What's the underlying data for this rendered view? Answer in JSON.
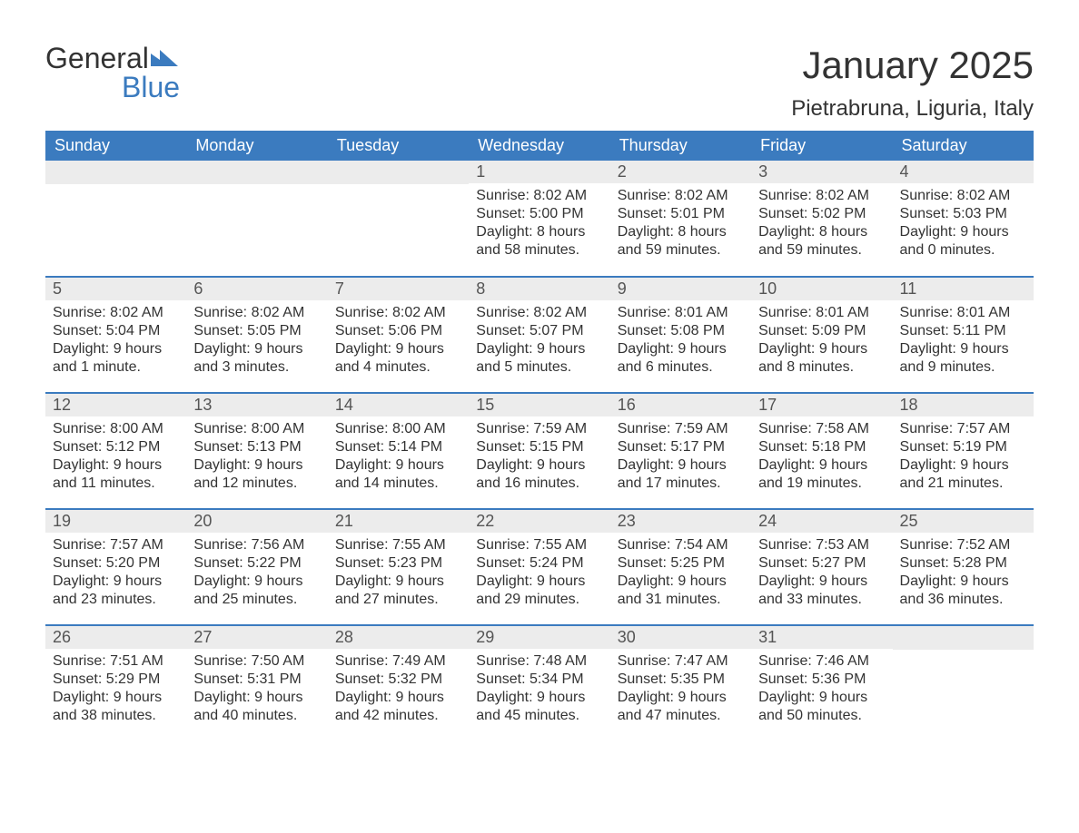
{
  "logo": {
    "word1": "General",
    "word2": "Blue",
    "mark_color": "#3b7bbf"
  },
  "title": "January 2025",
  "location": "Pietrabruna, Liguria, Italy",
  "colors": {
    "header_bg": "#3b7bbf",
    "header_text": "#ffffff",
    "daynum_bg": "#ececec",
    "daynum_text": "#555555",
    "body_text": "#333333",
    "row_border": "#3b7bbf",
    "page_bg": "#ffffff"
  },
  "typography": {
    "title_fontsize": 42,
    "location_fontsize": 24,
    "header_fontsize": 18,
    "daynum_fontsize": 18,
    "body_fontsize": 16,
    "font_family": "Arial"
  },
  "columns": [
    "Sunday",
    "Monday",
    "Tuesday",
    "Wednesday",
    "Thursday",
    "Friday",
    "Saturday"
  ],
  "weeks": [
    [
      null,
      null,
      null,
      {
        "n": "1",
        "sunrise": "8:02 AM",
        "sunset": "5:00 PM",
        "daylight": "8 hours and 58 minutes."
      },
      {
        "n": "2",
        "sunrise": "8:02 AM",
        "sunset": "5:01 PM",
        "daylight": "8 hours and 59 minutes."
      },
      {
        "n": "3",
        "sunrise": "8:02 AM",
        "sunset": "5:02 PM",
        "daylight": "8 hours and 59 minutes."
      },
      {
        "n": "4",
        "sunrise": "8:02 AM",
        "sunset": "5:03 PM",
        "daylight": "9 hours and 0 minutes."
      }
    ],
    [
      {
        "n": "5",
        "sunrise": "8:02 AM",
        "sunset": "5:04 PM",
        "daylight": "9 hours and 1 minute."
      },
      {
        "n": "6",
        "sunrise": "8:02 AM",
        "sunset": "5:05 PM",
        "daylight": "9 hours and 3 minutes."
      },
      {
        "n": "7",
        "sunrise": "8:02 AM",
        "sunset": "5:06 PM",
        "daylight": "9 hours and 4 minutes."
      },
      {
        "n": "8",
        "sunrise": "8:02 AM",
        "sunset": "5:07 PM",
        "daylight": "9 hours and 5 minutes."
      },
      {
        "n": "9",
        "sunrise": "8:01 AM",
        "sunset": "5:08 PM",
        "daylight": "9 hours and 6 minutes."
      },
      {
        "n": "10",
        "sunrise": "8:01 AM",
        "sunset": "5:09 PM",
        "daylight": "9 hours and 8 minutes."
      },
      {
        "n": "11",
        "sunrise": "8:01 AM",
        "sunset": "5:11 PM",
        "daylight": "9 hours and 9 minutes."
      }
    ],
    [
      {
        "n": "12",
        "sunrise": "8:00 AM",
        "sunset": "5:12 PM",
        "daylight": "9 hours and 11 minutes."
      },
      {
        "n": "13",
        "sunrise": "8:00 AM",
        "sunset": "5:13 PM",
        "daylight": "9 hours and 12 minutes."
      },
      {
        "n": "14",
        "sunrise": "8:00 AM",
        "sunset": "5:14 PM",
        "daylight": "9 hours and 14 minutes."
      },
      {
        "n": "15",
        "sunrise": "7:59 AM",
        "sunset": "5:15 PM",
        "daylight": "9 hours and 16 minutes."
      },
      {
        "n": "16",
        "sunrise": "7:59 AM",
        "sunset": "5:17 PM",
        "daylight": "9 hours and 17 minutes."
      },
      {
        "n": "17",
        "sunrise": "7:58 AM",
        "sunset": "5:18 PM",
        "daylight": "9 hours and 19 minutes."
      },
      {
        "n": "18",
        "sunrise": "7:57 AM",
        "sunset": "5:19 PM",
        "daylight": "9 hours and 21 minutes."
      }
    ],
    [
      {
        "n": "19",
        "sunrise": "7:57 AM",
        "sunset": "5:20 PM",
        "daylight": "9 hours and 23 minutes."
      },
      {
        "n": "20",
        "sunrise": "7:56 AM",
        "sunset": "5:22 PM",
        "daylight": "9 hours and 25 minutes."
      },
      {
        "n": "21",
        "sunrise": "7:55 AM",
        "sunset": "5:23 PM",
        "daylight": "9 hours and 27 minutes."
      },
      {
        "n": "22",
        "sunrise": "7:55 AM",
        "sunset": "5:24 PM",
        "daylight": "9 hours and 29 minutes."
      },
      {
        "n": "23",
        "sunrise": "7:54 AM",
        "sunset": "5:25 PM",
        "daylight": "9 hours and 31 minutes."
      },
      {
        "n": "24",
        "sunrise": "7:53 AM",
        "sunset": "5:27 PM",
        "daylight": "9 hours and 33 minutes."
      },
      {
        "n": "25",
        "sunrise": "7:52 AM",
        "sunset": "5:28 PM",
        "daylight": "9 hours and 36 minutes."
      }
    ],
    [
      {
        "n": "26",
        "sunrise": "7:51 AM",
        "sunset": "5:29 PM",
        "daylight": "9 hours and 38 minutes."
      },
      {
        "n": "27",
        "sunrise": "7:50 AM",
        "sunset": "5:31 PM",
        "daylight": "9 hours and 40 minutes."
      },
      {
        "n": "28",
        "sunrise": "7:49 AM",
        "sunset": "5:32 PM",
        "daylight": "9 hours and 42 minutes."
      },
      {
        "n": "29",
        "sunrise": "7:48 AM",
        "sunset": "5:34 PM",
        "daylight": "9 hours and 45 minutes."
      },
      {
        "n": "30",
        "sunrise": "7:47 AM",
        "sunset": "5:35 PM",
        "daylight": "9 hours and 47 minutes."
      },
      {
        "n": "31",
        "sunrise": "7:46 AM",
        "sunset": "5:36 PM",
        "daylight": "9 hours and 50 minutes."
      },
      null
    ]
  ],
  "labels": {
    "sunrise": "Sunrise:",
    "sunset": "Sunset:",
    "daylight": "Daylight:"
  }
}
